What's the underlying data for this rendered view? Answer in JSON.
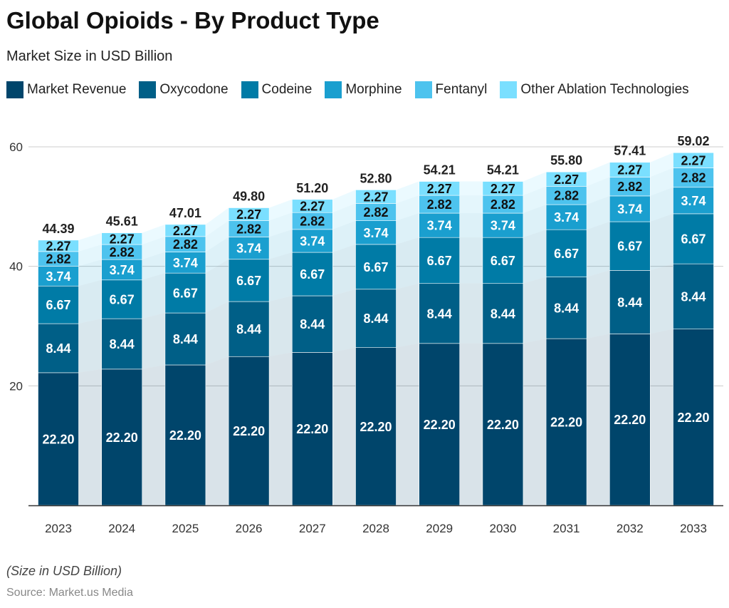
{
  "chart_data": {
    "type": "bar",
    "stacked": true,
    "title": "Global Opioids - By Product Type",
    "subtitle": "Market Size in USD Billion",
    "xlabel": "",
    "ylabel": "",
    "ylim": [
      0,
      60
    ],
    "yticks": [
      20,
      40,
      60
    ],
    "grid": true,
    "legend_position": "top-left",
    "categories": [
      "2023",
      "2024",
      "2025",
      "2026",
      "2027",
      "2028",
      "2029",
      "2030",
      "2031",
      "2032",
      "2033"
    ],
    "series": [
      {
        "name": "Market Revenue",
        "color": "#00456b",
        "values": [
          22.2,
          22.8,
          23.5,
          24.9,
          25.6,
          26.4,
          27.1,
          27.1,
          27.9,
          28.7,
          29.5
        ]
      },
      {
        "name": "Oxycodone",
        "color": "#005f87",
        "values": [
          8.21,
          8.44,
          8.7,
          9.21,
          9.47,
          9.77,
          10.03,
          10.03,
          10.32,
          10.62,
          10.92
        ]
      },
      {
        "name": "Codeine",
        "color": "#007ba6",
        "values": [
          6.3,
          6.48,
          6.67,
          7.07,
          7.27,
          7.5,
          7.7,
          7.7,
          7.92,
          8.15,
          8.38
        ]
      },
      {
        "name": "Morphine",
        "color": "#1a9fcf",
        "values": [
          3.33,
          3.42,
          3.53,
          3.74,
          3.84,
          3.96,
          4.07,
          4.07,
          4.19,
          4.31,
          4.43
        ]
      },
      {
        "name": "Fentanyl",
        "color": "#4dc3ee",
        "values": [
          2.44,
          2.51,
          2.59,
          2.74,
          2.82,
          2.9,
          2.98,
          2.98,
          3.07,
          3.16,
          3.25
        ]
      },
      {
        "name": "Other Ablation Technologies",
        "color": "#7adfff",
        "values": [
          1.91,
          1.96,
          2.02,
          2.14,
          2.2,
          2.27,
          2.33,
          2.33,
          2.4,
          2.47,
          2.54
        ]
      }
    ],
    "totals": [
      "44.39",
      "45.61",
      "47.01",
      "49.80",
      "51.20",
      "52.80",
      "54.21",
      "54.21",
      "55.80",
      "57.41",
      "59.02"
    ]
  },
  "footer": {
    "note": "(Size in USD Billion)",
    "source": "Source: Market.us Media"
  }
}
